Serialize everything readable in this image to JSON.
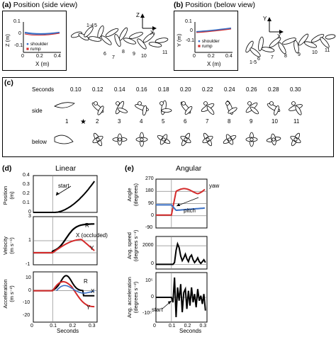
{
  "panel_a": {
    "label": "(a)",
    "title": "Position (side view)",
    "y_axis": "Z (m)",
    "x_axis": "X (m)",
    "y_ticks": [
      "0.1",
      "0",
      "-0.1"
    ],
    "x_ticks": [
      "0",
      "0.2",
      "0.4"
    ],
    "legend": [
      "shoulder",
      "rump"
    ],
    "axis_z": "Z",
    "axis_x": "X",
    "frame_labels_top": [
      "1-4",
      "5"
    ],
    "frame_labels_bottom": [
      "6",
      "7",
      "8",
      "9",
      "10",
      "11"
    ]
  },
  "panel_b": {
    "label": "(b)",
    "title": "Position (below view)",
    "y_axis": "Y (m)",
    "x_axis": "X (m)",
    "y_ticks": [
      "0.1",
      "0",
      "-0.1"
    ],
    "x_ticks": [
      "0",
      "0.2",
      "0.4"
    ],
    "legend": [
      "shoulder",
      "rump"
    ],
    "axis_y": "Y",
    "axis_x": "X",
    "frame_labels": [
      "6",
      "7",
      "8",
      "9",
      "10",
      "11"
    ],
    "frame_label_extra": "1-5"
  },
  "panel_c": {
    "label": "(c)",
    "seconds_label": "Seconds",
    "times": [
      "0.10",
      "0.12",
      "0.14",
      "0.16",
      "0.18",
      "0.20",
      "0.22",
      "0.24",
      "0.26",
      "0.28",
      "0.30"
    ],
    "row_side": "side",
    "row_below": "below",
    "frames": [
      "1",
      "2",
      "3",
      "4",
      "5",
      "6",
      "7",
      "8",
      "9",
      "10",
      "11"
    ],
    "star": "★"
  },
  "panel_d": {
    "label": "(d)",
    "title": "Linear",
    "ylabels": [
      [
        "Position",
        "(m)"
      ],
      [
        "Velocity",
        "(m s⁻¹)"
      ],
      [
        "Acceleration",
        "(m s⁻²)"
      ]
    ],
    "pos_ticks": [
      "0.4",
      "0.3",
      "0.2",
      "0.1",
      "0"
    ],
    "vel_ticks": [
      "3",
      "1",
      "-1"
    ],
    "acc_ticks": [
      "10",
      "0",
      "-10",
      "-20"
    ],
    "x_ticks": [
      "0",
      "0.1",
      "0.2",
      "0.3"
    ],
    "x_label": "Seconds",
    "start_label": "start",
    "vel_R": "R",
    "vel_X": "X (occluded)",
    "vel_Y": "Y",
    "acc_R": "R",
    "acc_X": "X",
    "acc_Y": "Y"
  },
  "panel_e": {
    "label": "(e)",
    "title": "Angular",
    "ylabels": [
      [
        "Angle",
        "(degrees)"
      ],
      [
        "Ang. speed",
        "(degrees s⁻¹)"
      ],
      [
        "Ang. acceleration",
        "(degrees s⁻²)"
      ]
    ],
    "ang_ticks": [
      "270",
      "180",
      "90",
      "0",
      "-90"
    ],
    "spd_ticks": [
      "2000",
      "0"
    ],
    "acc_ticks": [
      "10⁵",
      "0",
      "-10⁵"
    ],
    "x_ticks": [
      "0",
      "0.1",
      "0.2",
      "0.3"
    ],
    "x_label": "Seconds",
    "yaw_label": "yaw",
    "pitch_label": "pitch",
    "start_label": "start"
  },
  "colors": {
    "blue": "#3a6fc4",
    "red": "#d42a2a",
    "black": "#000000",
    "grid": "#888888"
  }
}
